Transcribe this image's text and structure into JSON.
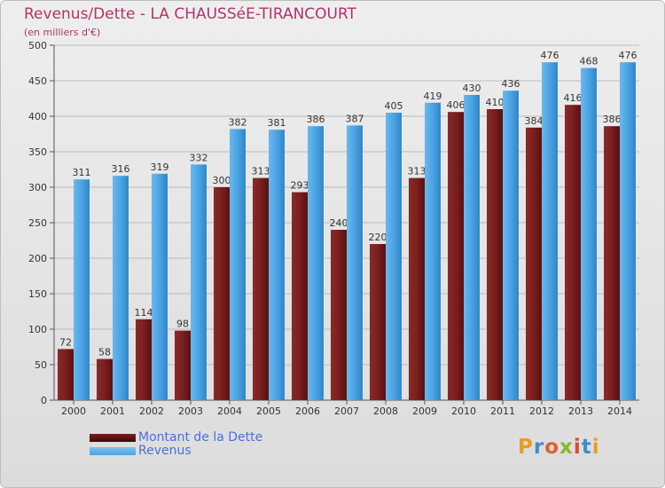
{
  "header": {
    "title": "Revenus/Dette - LA CHAUSSéE-TIRANCOURT",
    "subtitle": "(en milliers d'€)"
  },
  "legend": {
    "debt_label": "Montant de la Dette",
    "revenue_label": "Revenus"
  },
  "logo": {
    "letters": [
      "P",
      "r",
      "o",
      "x",
      "i",
      "t",
      "i"
    ],
    "colors": [
      "#e89c2a",
      "#3b8fd1",
      "#e06030",
      "#8ab82e",
      "#d84a3a",
      "#3b8fd1",
      "#e89c2a"
    ]
  },
  "colors": {
    "debt": "#7a1f1f",
    "revenue": "#4aa3e3",
    "grid": "#bbbbbb"
  },
  "chart_data": {
    "type": "bar",
    "title": "Revenus/Dette - LA CHAUSSéE-TIRANCOURT",
    "ylabel": "(en milliers d'€)",
    "xlabel": "",
    "categories": [
      "2000",
      "2001",
      "2002",
      "2003",
      "2004",
      "2005",
      "2006",
      "2007",
      "2008",
      "2009",
      "2010",
      "2011",
      "2012",
      "2013",
      "2014"
    ],
    "series": [
      {
        "name": "Montant de la Dette",
        "values": [
          72,
          58,
          114,
          98,
          300,
          313,
          293,
          240,
          220,
          313,
          406,
          410,
          384,
          416,
          386
        ]
      },
      {
        "name": "Revenus",
        "values": [
          311,
          316,
          319,
          332,
          382,
          381,
          386,
          387,
          405,
          419,
          430,
          436,
          476,
          468,
          476
        ]
      }
    ],
    "ylim": [
      0,
      500
    ],
    "yticks": [
      0,
      50,
      100,
      150,
      200,
      250,
      300,
      350,
      400,
      450,
      500
    ],
    "grid": true,
    "legend_position": "bottom-left"
  }
}
